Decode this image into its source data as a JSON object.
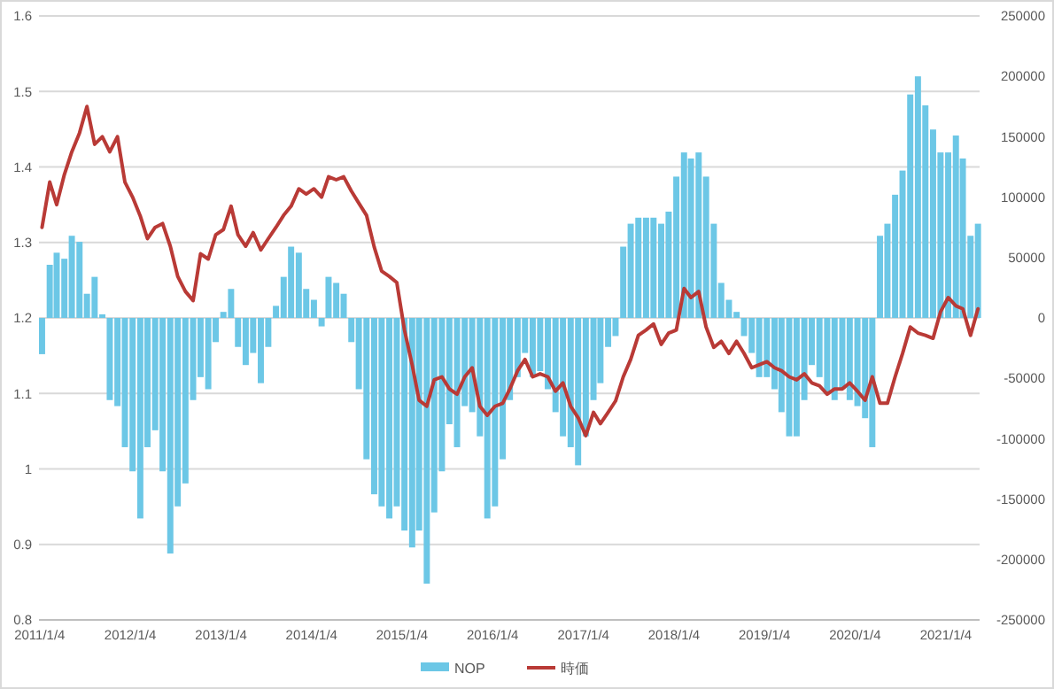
{
  "chart_data": {
    "type": "bar",
    "x": [
      "2011-01",
      "2011-02",
      "2011-03",
      "2011-04",
      "2011-05",
      "2011-06",
      "2011-07",
      "2011-08",
      "2011-09",
      "2011-10",
      "2011-11",
      "2011-12",
      "2012-01",
      "2012-02",
      "2012-03",
      "2012-04",
      "2012-05",
      "2012-06",
      "2012-07",
      "2012-08",
      "2012-09",
      "2012-10",
      "2012-11",
      "2012-12",
      "2013-01",
      "2013-02",
      "2013-03",
      "2013-04",
      "2013-05",
      "2013-06",
      "2013-07",
      "2013-08",
      "2013-09",
      "2013-10",
      "2013-11",
      "2013-12",
      "2014-01",
      "2014-02",
      "2014-03",
      "2014-04",
      "2014-05",
      "2014-06",
      "2014-07",
      "2014-08",
      "2014-09",
      "2014-10",
      "2014-11",
      "2014-12",
      "2015-01",
      "2015-02",
      "2015-03",
      "2015-04",
      "2015-05",
      "2015-06",
      "2015-07",
      "2015-08",
      "2015-09",
      "2015-10",
      "2015-11",
      "2015-12",
      "2016-01",
      "2016-02",
      "2016-03",
      "2016-04",
      "2016-05",
      "2016-06",
      "2016-07",
      "2016-08",
      "2016-09",
      "2016-10",
      "2016-11",
      "2016-12",
      "2017-01",
      "2017-02",
      "2017-03",
      "2017-04",
      "2017-05",
      "2017-06",
      "2017-07",
      "2017-08",
      "2017-09",
      "2017-10",
      "2017-11",
      "2017-12",
      "2018-01",
      "2018-02",
      "2018-03",
      "2018-04",
      "2018-05",
      "2018-06",
      "2018-07",
      "2018-08",
      "2018-09",
      "2018-10",
      "2018-11",
      "2018-12",
      "2019-01",
      "2019-02",
      "2019-03",
      "2019-04",
      "2019-05",
      "2019-06",
      "2019-07",
      "2019-08",
      "2019-09",
      "2019-10",
      "2019-11",
      "2019-12",
      "2020-01",
      "2020-02",
      "2020-03",
      "2020-04",
      "2020-05",
      "2020-06",
      "2020-07",
      "2020-08",
      "2020-09",
      "2020-10",
      "2020-11",
      "2020-12",
      "2021-01",
      "2021-02",
      "2021-03",
      "2021-04",
      "2021-05"
    ],
    "series": [
      {
        "name": "NOP",
        "axis": "y2",
        "color": "#6cc7e6",
        "values": [
          -30000,
          44000,
          54000,
          49000,
          68000,
          63000,
          20000,
          34000,
          3000,
          -68000,
          -73000,
          -107000,
          -127000,
          -166000,
          -107000,
          -93000,
          -127000,
          -195000,
          -156000,
          -137000,
          -68000,
          -49000,
          -59000,
          -20000,
          5000,
          24000,
          -24000,
          -39000,
          -29000,
          -54000,
          -24000,
          10000,
          34000,
          59000,
          54000,
          24000,
          15000,
          -7000,
          34000,
          29000,
          20000,
          -20000,
          -59000,
          -117000,
          -146000,
          -156000,
          -166000,
          -156000,
          -176000,
          -190000,
          -176000,
          -220000,
          -161000,
          -127000,
          -88000,
          -107000,
          -73000,
          -78000,
          -98000,
          -166000,
          -156000,
          -117000,
          -68000,
          -49000,
          -29000,
          -49000,
          -44000,
          -59000,
          -78000,
          -98000,
          -107000,
          -122000,
          -98000,
          -68000,
          -54000,
          -24000,
          -15000,
          59000,
          78000,
          83000,
          83000,
          83000,
          78000,
          88000,
          117000,
          137000,
          132000,
          137000,
          117000,
          78000,
          29000,
          15000,
          5000,
          -15000,
          -29000,
          -49000,
          -49000,
          -59000,
          -78000,
          -98000,
          -98000,
          -68000,
          -39000,
          -49000,
          -63000,
          -68000,
          -59000,
          -68000,
          -73000,
          -83000,
          -107000,
          68000,
          78000,
          102000,
          122000,
          185000,
          200000,
          176000,
          156000,
          137000,
          137000,
          151000,
          132000,
          68000,
          78000
        ]
      },
      {
        "name": "時価",
        "type": "line",
        "color": "#b93a36",
        "values": [
          1.32,
          1.38,
          1.35,
          1.39,
          1.42,
          1.445,
          1.48,
          1.43,
          1.44,
          1.42,
          1.44,
          1.38,
          1.36,
          1.335,
          1.305,
          1.32,
          1.325,
          1.295,
          1.255,
          1.235,
          1.223,
          1.285,
          1.278,
          1.31,
          1.317,
          1.348,
          1.31,
          1.295,
          1.313,
          1.29,
          1.305,
          1.32,
          1.336,
          1.348,
          1.371,
          1.364,
          1.371,
          1.36,
          1.387,
          1.383,
          1.387,
          1.368,
          1.352,
          1.336,
          1.294,
          1.262,
          1.255,
          1.247,
          1.184,
          1.138,
          1.091,
          1.083,
          1.118,
          1.122,
          1.106,
          1.099,
          1.122,
          1.134,
          1.083,
          1.071,
          1.083,
          1.087,
          1.106,
          1.13,
          1.145,
          1.122,
          1.126,
          1.122,
          1.103,
          1.114,
          1.083,
          1.068,
          1.044,
          1.075,
          1.06,
          1.075,
          1.09,
          1.122,
          1.145,
          1.177,
          1.184,
          1.192,
          1.165,
          1.18,
          1.184,
          1.239,
          1.227,
          1.235,
          1.188,
          1.161,
          1.169,
          1.153,
          1.169,
          1.153,
          1.134,
          1.138,
          1.142,
          1.134,
          1.13,
          1.122,
          1.118,
          1.126,
          1.114,
          1.11,
          1.099,
          1.106,
          1.106,
          1.114,
          1.103,
          1.091,
          1.122,
          1.087,
          1.087,
          1.122,
          1.153,
          1.188,
          1.18,
          1.177,
          1.173,
          1.208,
          1.227,
          1.216,
          1.212,
          1.177,
          1.212
        ]
      }
    ],
    "xlim": [
      "2011-01-01",
      "2021-05-20"
    ],
    "xticks": [
      {
        "value": "2011-01-04",
        "label": "2011/1/4"
      },
      {
        "value": "2012-01-04",
        "label": "2012/1/4"
      },
      {
        "value": "2013-01-04",
        "label": "2013/1/4"
      },
      {
        "value": "2014-01-04",
        "label": "2014/1/4"
      },
      {
        "value": "2015-01-04",
        "label": "2015/1/4"
      },
      {
        "value": "2016-01-04",
        "label": "2016/1/4"
      },
      {
        "value": "2017-01-04",
        "label": "2017/1/4"
      },
      {
        "value": "2018-01-04",
        "label": "2018/1/4"
      },
      {
        "value": "2019-01-04",
        "label": "2019/1/4"
      },
      {
        "value": "2020-01-04",
        "label": "2020/1/4"
      },
      {
        "value": "2021-01-04",
        "label": "2021/1/4"
      }
    ],
    "ylim": [
      0.8,
      1.6
    ],
    "yticks": [
      0.8,
      0.9,
      1,
      1.1,
      1.2,
      1.3,
      1.4,
      1.5,
      1.6
    ],
    "y2lim": [
      -250000,
      250000
    ],
    "y2ticks": [
      -250000,
      -200000,
      -150000,
      -100000,
      -50000,
      0,
      50000,
      100000,
      150000,
      200000,
      250000
    ],
    "grid": "y",
    "legend": "bottom",
    "line_style": "solid"
  }
}
